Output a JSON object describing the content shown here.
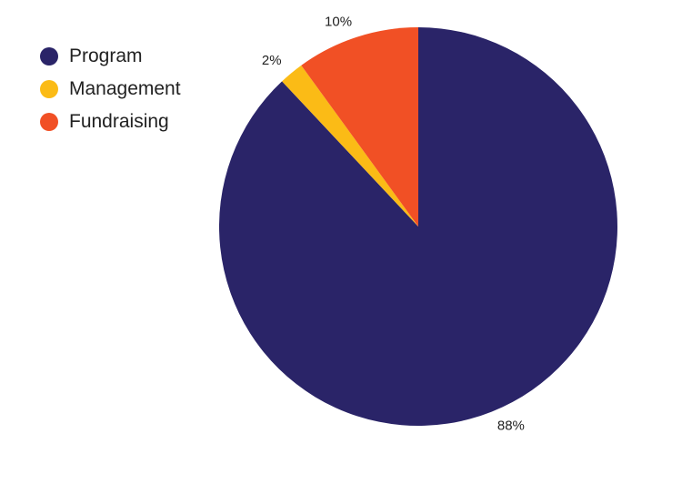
{
  "chart_data": {
    "type": "pie",
    "start": "12 o'clock",
    "direction": "clockwise",
    "slices": [
      {
        "name": "Program",
        "value": 88,
        "label": "88%",
        "color": "#2a2468"
      },
      {
        "name": "Management",
        "value": 2,
        "label": "2%",
        "color": "#fbbb16"
      },
      {
        "name": "Fundraising",
        "value": 10,
        "label": "10%",
        "color": "#f15025"
      }
    ],
    "legend": "top-left"
  }
}
